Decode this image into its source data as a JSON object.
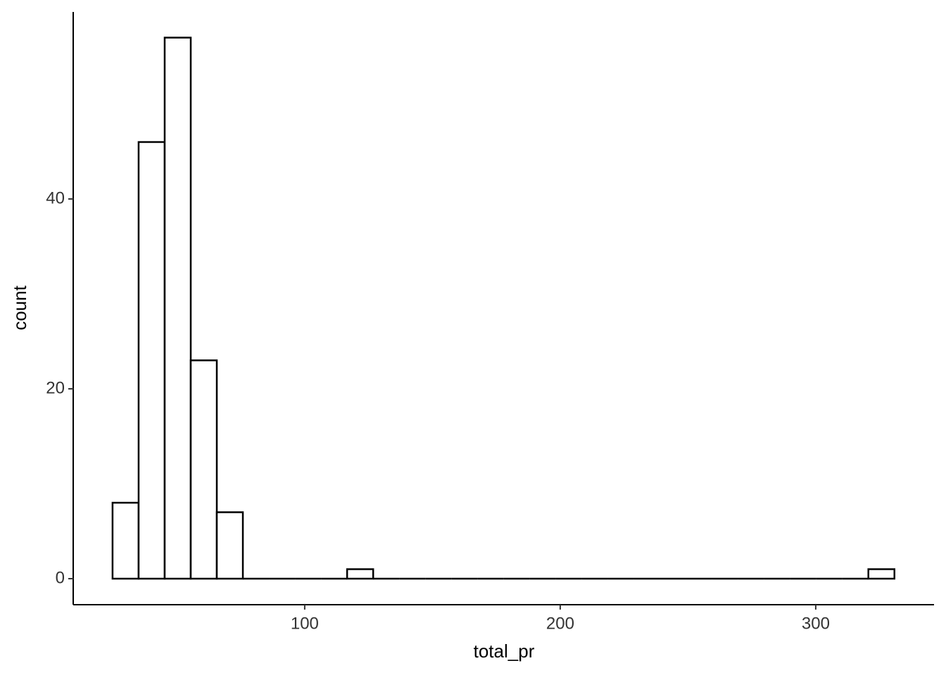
{
  "chart_data": {
    "type": "histogram",
    "x_label": "total_pr",
    "y_label": "count",
    "bins": [
      24.8,
      35,
      45.2,
      55.4,
      65.6,
      75.8,
      86,
      96.2,
      106.4,
      116.6,
      126.8,
      137,
      147.2,
      157.4,
      167.6,
      177.8,
      188,
      198.2,
      208.4,
      218.6,
      228.8,
      239,
      249.2,
      259.4,
      269.6,
      279.8,
      290,
      300.2,
      310.4,
      320.6,
      330.8
    ],
    "values": [
      8,
      46,
      57,
      23,
      7,
      0,
      0,
      0,
      0,
      1,
      0,
      0,
      0,
      0,
      0,
      0,
      0,
      0,
      0,
      0,
      0,
      0,
      0,
      0,
      0,
      0,
      0,
      0,
      0,
      1
    ],
    "color": "#ffffff",
    "edgecolor": "#000000",
    "xlim": [
      9.4,
      346.3
    ],
    "ylim": [
      -2.74,
      59.7
    ],
    "xticks": [
      100,
      200,
      300
    ],
    "yticks": [
      0,
      20,
      40
    ]
  }
}
